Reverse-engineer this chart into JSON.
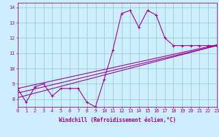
{
  "xlabel": "Windchill (Refroidissement éolien,°C)",
  "ylabel": "",
  "hours": [
    0,
    1,
    2,
    3,
    4,
    5,
    6,
    7,
    8,
    9,
    10,
    11,
    12,
    13,
    14,
    15,
    16,
    17,
    18,
    19,
    20,
    21,
    22,
    23
  ],
  "windchill": [
    8.7,
    7.8,
    8.8,
    9.0,
    8.2,
    8.7,
    8.7,
    8.7,
    7.8,
    7.5,
    9.3,
    11.2,
    13.6,
    13.8,
    12.7,
    13.8,
    13.5,
    12.0,
    11.5,
    11.5,
    11.5,
    11.5,
    11.5,
    11.5
  ],
  "reg1_start": 8.1,
  "reg1_end": 11.5,
  "reg2_start": 8.4,
  "reg2_end": 11.5,
  "reg3_start": 8.7,
  "reg3_end": 11.55,
  "line_color": "#990099",
  "bg_color": "#cceeff",
  "grid_color": "#99cccc",
  "xlim": [
    0,
    23
  ],
  "ylim": [
    7.5,
    14.3
  ],
  "yticks": [
    8,
    9,
    10,
    11,
    12,
    13,
    14
  ],
  "xticks": [
    0,
    1,
    2,
    3,
    4,
    5,
    6,
    7,
    8,
    9,
    10,
    11,
    12,
    13,
    14,
    15,
    16,
    17,
    18,
    19,
    20,
    21,
    22,
    23
  ],
  "tick_fontsize": 5.0,
  "xlabel_fontsize": 5.5,
  "linewidth": 0.8,
  "markersize": 3.5
}
